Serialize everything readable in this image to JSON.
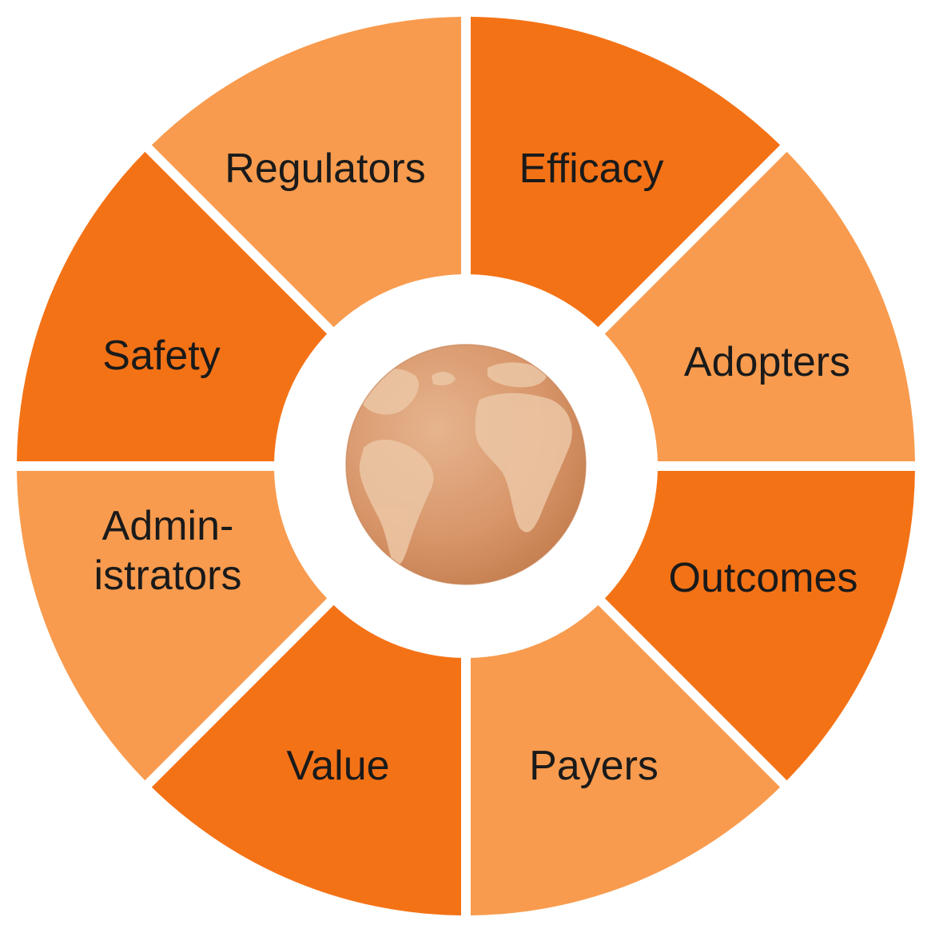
{
  "segments": [
    {
      "label": "Regulators",
      "color": "#f47216"
    },
    {
      "label": "Efficacy",
      "color": "#f89b4e"
    },
    {
      "label": "Adopters",
      "color": "#f47216"
    },
    {
      "label": "Outcomes",
      "color": "#f89b4e"
    },
    {
      "label": "Payers",
      "color": "#f47216"
    },
    {
      "label": "Value",
      "color": "#f89b4e"
    },
    {
      "label": "Admin-\nistrators",
      "color": "#f47216"
    },
    {
      "label": "Safety",
      "color": "#f89b4e"
    }
  ],
  "center": {
    "icon": "globe-icon",
    "globe_color": "#d99a6c",
    "land_color": "#ecc7a6"
  },
  "colors": {
    "dark_orange": "#f47216",
    "light_orange": "#f89b4e",
    "background": "#ffffff"
  }
}
